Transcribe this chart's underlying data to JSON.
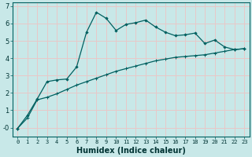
{
  "xlabel": "Humidex (Indice chaleur)",
  "bg_color": "#c8e8e8",
  "grid_color": "#e8c8c8",
  "line_color": "#006060",
  "xlim": [
    -0.5,
    23.5
  ],
  "ylim": [
    -0.5,
    7.2
  ],
  "yticks": [
    0,
    1,
    2,
    3,
    4,
    5,
    6,
    7
  ],
  "ytick_labels": [
    "-0",
    "1",
    "2",
    "3",
    "4",
    "5",
    "6",
    "7"
  ],
  "xticks": [
    0,
    1,
    2,
    3,
    4,
    5,
    6,
    7,
    8,
    9,
    10,
    11,
    12,
    13,
    14,
    15,
    16,
    17,
    18,
    19,
    20,
    21,
    22,
    23
  ],
  "curve1_x": [
    0,
    1,
    2,
    3,
    4,
    5,
    6,
    7,
    8,
    9,
    10,
    11,
    12,
    13,
    14,
    15,
    16,
    17,
    18,
    19,
    20,
    21,
    22,
    23
  ],
  "curve1_y": [
    -0.05,
    0.7,
    1.65,
    2.65,
    2.75,
    2.8,
    3.5,
    5.5,
    6.65,
    6.3,
    5.6,
    5.95,
    6.05,
    6.2,
    5.8,
    5.5,
    5.3,
    5.35,
    5.45,
    4.85,
    5.05,
    4.65,
    4.5,
    4.55
  ],
  "curve2_x": [
    0,
    1,
    2,
    3,
    4,
    5,
    6,
    7,
    8,
    9,
    10,
    11,
    12,
    13,
    14,
    15,
    16,
    17,
    18,
    19,
    20,
    21,
    22,
    23
  ],
  "curve2_y": [
    -0.05,
    0.55,
    1.6,
    1.75,
    1.95,
    2.2,
    2.45,
    2.65,
    2.85,
    3.05,
    3.25,
    3.4,
    3.55,
    3.7,
    3.85,
    3.95,
    4.05,
    4.1,
    4.15,
    4.2,
    4.3,
    4.4,
    4.5,
    4.55
  ],
  "xlabel_fontsize": 7,
  "tick_fontsize": 5,
  "xlabel_bold": true
}
